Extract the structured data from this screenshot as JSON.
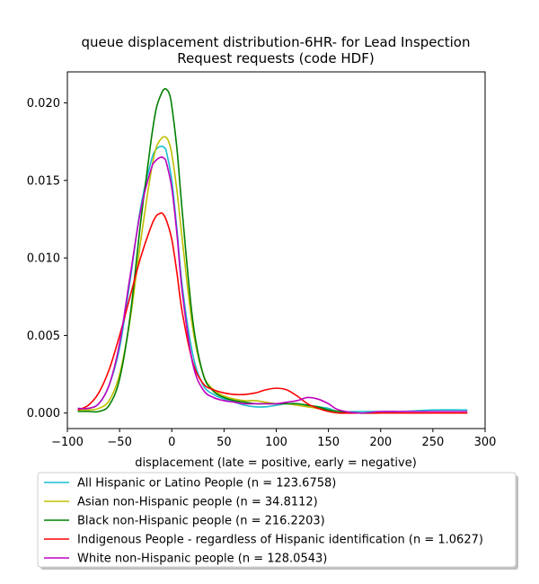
{
  "chart_data": {
    "type": "line",
    "title_line1": "queue displacement distribution-6HR-  for Lead Inspection",
    "title_line2": "Request  requests (code HDF)",
    "xlabel": "displacement (late = positive, early = negative)",
    "ylabel": "",
    "xlim": [
      -100,
      300
    ],
    "ylim": [
      -0.001,
      0.022
    ],
    "xticks": [
      -100,
      -50,
      0,
      50,
      100,
      150,
      200,
      250,
      300
    ],
    "xtick_labels": [
      "−100",
      "−50",
      "0",
      "50",
      "100",
      "150",
      "200",
      "250",
      "300"
    ],
    "yticks": [
      0.0,
      0.005,
      0.01,
      0.015,
      0.02
    ],
    "ytick_labels": [
      "0.000",
      "0.005",
      "0.010",
      "0.015",
      "0.020"
    ],
    "grid": false,
    "legend_position": "bottom, below axes",
    "series": [
      {
        "name": "All Hispanic or Latino People (n = 123.6758)",
        "color": "#17becf",
        "x": [
          -90,
          -80,
          -70,
          -60,
          -50,
          -40,
          -30,
          -20,
          -15,
          -10,
          -7,
          -5,
          0,
          5,
          10,
          20,
          30,
          40,
          50,
          60,
          70,
          80,
          90,
          100,
          110,
          120,
          130,
          140,
          150,
          160,
          180,
          200,
          220,
          250,
          283
        ],
        "y": [
          0.0003,
          0.0003,
          0.0006,
          0.0018,
          0.0042,
          0.0085,
          0.0132,
          0.0162,
          0.017,
          0.0172,
          0.0171,
          0.0168,
          0.015,
          0.0118,
          0.0082,
          0.0038,
          0.0018,
          0.0012,
          0.0009,
          0.0007,
          0.0005,
          0.0004,
          0.0004,
          0.0005,
          0.0006,
          0.0006,
          0.0005,
          0.0004,
          0.0003,
          0.0001,
          0.0001,
          0.0001,
          0.0001,
          0.0002,
          0.0002
        ]
      },
      {
        "name": "Asian non-Hispanic people (n = 34.8112)",
        "color": "#bfbf00",
        "x": [
          -90,
          -80,
          -70,
          -60,
          -50,
          -40,
          -30,
          -20,
          -15,
          -10,
          -6,
          -3,
          0,
          5,
          10,
          20,
          30,
          40,
          50,
          60,
          70,
          80,
          90,
          100,
          110,
          120,
          130,
          140,
          150,
          160,
          180,
          200,
          220,
          250,
          283
        ],
        "y": [
          0.0002,
          0.0002,
          0.0003,
          0.0008,
          0.0025,
          0.006,
          0.011,
          0.0155,
          0.0171,
          0.0177,
          0.0178,
          0.0175,
          0.0167,
          0.0143,
          0.0112,
          0.0055,
          0.0025,
          0.0015,
          0.0011,
          0.0009,
          0.0008,
          0.0008,
          0.0007,
          0.0006,
          0.0006,
          0.0005,
          0.0004,
          0.0003,
          0.0002,
          0.0001,
          0.0,
          0.0,
          0.0,
          0.0,
          0.0
        ]
      },
      {
        "name": "Black non-Hispanic people (n = 216.2203)",
        "color": "#008000",
        "x": [
          -90,
          -80,
          -70,
          -60,
          -50,
          -40,
          -30,
          -20,
          -15,
          -10,
          -7,
          -4,
          -2,
          0,
          5,
          10,
          20,
          30,
          40,
          50,
          60,
          70,
          80,
          90,
          100,
          110,
          120,
          130,
          140,
          150,
          160,
          180,
          200,
          220,
          250,
          283
        ],
        "y": [
          0.0001,
          0.0001,
          0.0001,
          0.0005,
          0.0022,
          0.0062,
          0.0122,
          0.0175,
          0.0196,
          0.0206,
          0.0209,
          0.0208,
          0.0205,
          0.0198,
          0.017,
          0.013,
          0.006,
          0.0025,
          0.0014,
          0.001,
          0.0008,
          0.0007,
          0.0006,
          0.0006,
          0.0006,
          0.0006,
          0.0006,
          0.0005,
          0.0004,
          0.0002,
          0.0001,
          0.0,
          0.0,
          0.0,
          0.0,
          0.0
        ]
      },
      {
        "name": "Indigenous People - regardless of Hispanic identification (n = 1.0627)",
        "color": "#ff0000",
        "x": [
          -90,
          -80,
          -70,
          -60,
          -50,
          -40,
          -30,
          -20,
          -15,
          -10,
          -8,
          -5,
          0,
          5,
          10,
          20,
          30,
          40,
          50,
          60,
          70,
          80,
          90,
          100,
          110,
          120,
          130,
          140,
          150,
          160,
          180,
          200,
          220,
          250,
          283
        ],
        "y": [
          0.0002,
          0.0005,
          0.0013,
          0.0028,
          0.005,
          0.0075,
          0.01,
          0.012,
          0.0127,
          0.0129,
          0.0128,
          0.0124,
          0.0112,
          0.009,
          0.0065,
          0.0033,
          0.0019,
          0.0015,
          0.0013,
          0.0012,
          0.0012,
          0.0013,
          0.0015,
          0.0016,
          0.0015,
          0.0011,
          0.0006,
          0.0003,
          0.0001,
          0.0,
          0.0,
          0.0,
          0.0,
          0.0,
          0.0
        ]
      },
      {
        "name": "White non-Hispanic people (n = 128.0543)",
        "color": "#bf00bf",
        "x": [
          -90,
          -80,
          -70,
          -60,
          -50,
          -40,
          -30,
          -20,
          -15,
          -10,
          -7,
          -5,
          0,
          5,
          10,
          20,
          30,
          40,
          50,
          60,
          70,
          80,
          90,
          100,
          110,
          120,
          130,
          140,
          150,
          160,
          180,
          200,
          220,
          250,
          283
        ],
        "y": [
          0.0003,
          0.0003,
          0.0006,
          0.0018,
          0.0045,
          0.0088,
          0.013,
          0.0157,
          0.0163,
          0.0165,
          0.0164,
          0.0161,
          0.0145,
          0.0115,
          0.0078,
          0.0032,
          0.0015,
          0.001,
          0.0008,
          0.0007,
          0.0006,
          0.0006,
          0.0006,
          0.0006,
          0.0007,
          0.0008,
          0.001,
          0.0009,
          0.0006,
          0.0002,
          0.0,
          0.0001,
          0.0001,
          0.0001,
          0.0001
        ]
      }
    ]
  }
}
